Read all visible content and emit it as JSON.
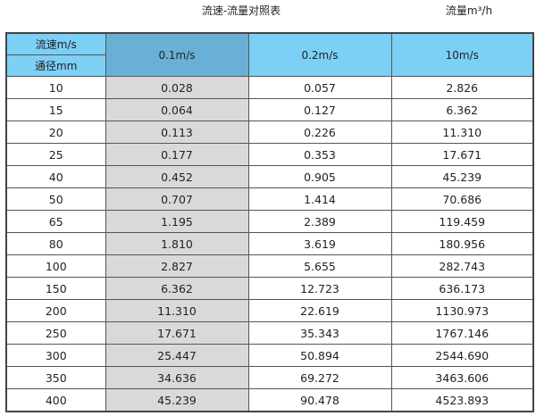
{
  "title": "流速-流量对照表",
  "unit": "流量m³/h",
  "header": {
    "velocity_label": "流速m/s",
    "diameter_label": "通径mm",
    "columns": [
      "0.1m/s",
      "0.2m/s",
      "10m/s"
    ]
  },
  "colors": {
    "header": "#7ccff5",
    "header_highlight": "#6ab0d6",
    "highlight_column": "#d9d9d9"
  },
  "rows": [
    [
      "10",
      "0.028",
      "0.057",
      "2.826"
    ],
    [
      "15",
      "0.064",
      "0.127",
      "6.362"
    ],
    [
      "20",
      "0.113",
      "0.226",
      "11.310"
    ],
    [
      "25",
      "0.177",
      "0.353",
      "17.671"
    ],
    [
      "40",
      "0.452",
      "0.905",
      "45.239"
    ],
    [
      "50",
      "0.707",
      "1.414",
      "70.686"
    ],
    [
      "65",
      "1.195",
      "2.389",
      "119.459"
    ],
    [
      "80",
      "1.810",
      "3.619",
      "180.956"
    ],
    [
      "100",
      "2.827",
      "5.655",
      "282.743"
    ],
    [
      "150",
      "6.362",
      "12.723",
      "636.173"
    ],
    [
      "200",
      "11.310",
      "22.619",
      "1130.973"
    ],
    [
      "250",
      "17.671",
      "35.343",
      "1767.146"
    ],
    [
      "300",
      "25.447",
      "50.894",
      "2544.690"
    ],
    [
      "350",
      "34.636",
      "69.272",
      "3463.606"
    ],
    [
      "400",
      "45.239",
      "90.478",
      "4523.893"
    ]
  ]
}
